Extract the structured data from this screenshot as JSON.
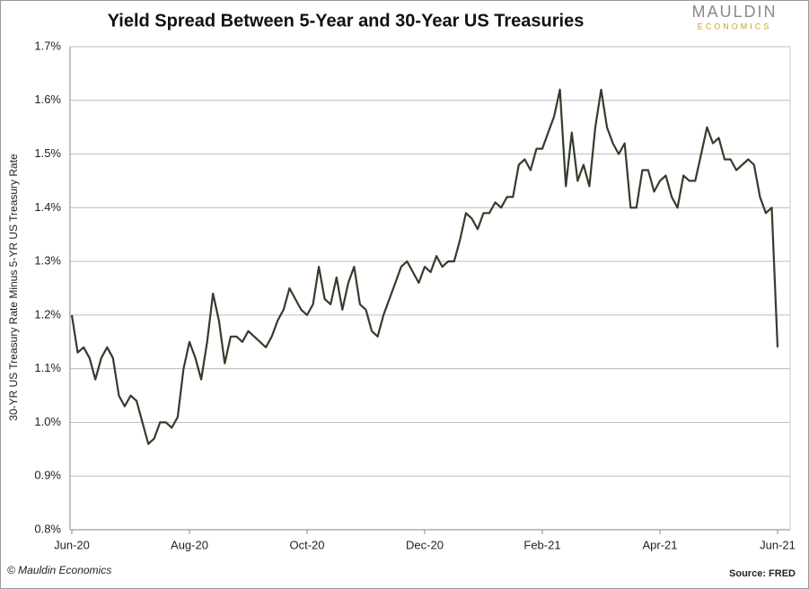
{
  "header": {
    "logo": "MAULDIN",
    "logo_sub": "ECONOMICS"
  },
  "chart_data": {
    "type": "line",
    "title": "Yield Spread Between 5-Year and 30-Year US Treasuries",
    "y_label": "30-YR US Treasury Rate Minus 5-YR US Treasury Rate",
    "categories": [
      "Jun-20",
      null,
      null,
      null,
      null,
      null,
      null,
      null,
      null,
      null,
      null,
      null,
      null,
      null,
      null,
      null,
      null,
      null,
      null,
      null,
      "Aug-20",
      null,
      null,
      null,
      null,
      null,
      null,
      null,
      null,
      null,
      null,
      null,
      null,
      null,
      null,
      null,
      null,
      null,
      null,
      null,
      "Oct-20",
      null,
      null,
      null,
      null,
      null,
      null,
      null,
      null,
      null,
      null,
      null,
      null,
      null,
      null,
      null,
      null,
      null,
      null,
      null,
      "Dec-20",
      null,
      null,
      null,
      null,
      null,
      null,
      null,
      null,
      null,
      null,
      null,
      null,
      null,
      null,
      null,
      null,
      null,
      null,
      null,
      "Feb-21",
      null,
      null,
      null,
      null,
      null,
      null,
      null,
      null,
      null,
      null,
      null,
      null,
      null,
      null,
      null,
      null,
      null,
      null,
      null,
      "Apr-21",
      null,
      null,
      null,
      null,
      null,
      null,
      null,
      null,
      null,
      null,
      null,
      null,
      null,
      null,
      null,
      null,
      null,
      null,
      null,
      "Jun-21"
    ],
    "values": [
      1.2,
      1.13,
      1.14,
      1.12,
      1.08,
      1.12,
      1.14,
      1.12,
      1.05,
      1.03,
      1.05,
      1.04,
      1.0,
      0.96,
      0.97,
      1.0,
      1.0,
      0.99,
      1.01,
      1.1,
      1.15,
      1.12,
      1.08,
      1.15,
      1.24,
      1.19,
      1.11,
      1.16,
      1.16,
      1.15,
      1.17,
      1.16,
      1.15,
      1.14,
      1.16,
      1.19,
      1.21,
      1.25,
      1.23,
      1.21,
      1.2,
      1.22,
      1.29,
      1.23,
      1.22,
      1.27,
      1.21,
      1.26,
      1.29,
      1.22,
      1.21,
      1.17,
      1.16,
      1.2,
      1.23,
      1.26,
      1.29,
      1.3,
      1.28,
      1.26,
      1.29,
      1.28,
      1.31,
      1.29,
      1.3,
      1.3,
      1.34,
      1.39,
      1.38,
      1.36,
      1.39,
      1.39,
      1.41,
      1.4,
      1.42,
      1.42,
      1.48,
      1.49,
      1.47,
      1.51,
      1.51,
      1.54,
      1.57,
      1.62,
      1.44,
      1.54,
      1.45,
      1.48,
      1.44,
      1.55,
      1.62,
      1.55,
      1.52,
      1.5,
      1.52,
      1.4,
      1.4,
      1.47,
      1.47,
      1.43,
      1.45,
      1.46,
      1.42,
      1.4,
      1.46,
      1.45,
      1.45,
      1.5,
      1.55,
      1.52,
      1.53,
      1.49,
      1.49,
      1.47,
      1.48,
      1.49,
      1.48,
      1.42,
      1.39,
      1.4,
      1.14
    ],
    "color": "#333d29",
    "ylim": [
      0.8,
      1.7
    ],
    "yticks": [
      {
        "value": 0.8,
        "label": "0.8%"
      },
      {
        "value": 0.9,
        "label": "0.9%"
      },
      {
        "value": 1.0,
        "label": "1.0%"
      },
      {
        "value": 1.1,
        "label": "1.1%"
      },
      {
        "value": 1.2,
        "label": "1.2%"
      },
      {
        "value": 1.3,
        "label": "1.3%"
      },
      {
        "value": 1.4,
        "label": "1.4%"
      },
      {
        "value": 1.5,
        "label": "1.5%"
      },
      {
        "value": 1.6,
        "label": "1.6%"
      },
      {
        "value": 1.7,
        "label": "1.7%"
      }
    ],
    "grid": true
  },
  "footer": {
    "copyright": "© Mauldin Economics",
    "source": "Source: FRED"
  }
}
